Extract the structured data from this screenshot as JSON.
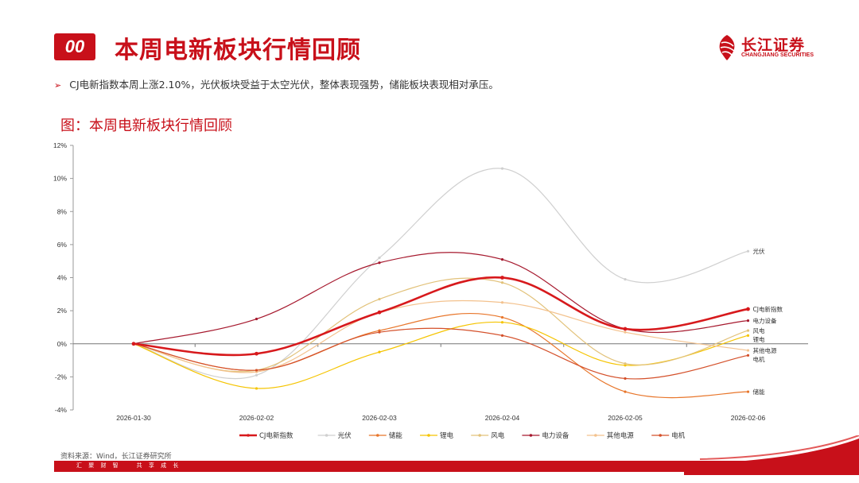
{
  "header": {
    "badge": "00",
    "title": "本周电新板块行情回顾",
    "logo_cn": "长江证券",
    "logo_en": "CHANGJIANG SECURITIES"
  },
  "bullet": {
    "text": "CJ电新指数本周上涨2.10%，光伏板块受益于太空光伏，整体表现强势，储能板块表现相对承压。"
  },
  "figure_title": "图：本周电新板块行情回顾",
  "source": "资料来源：Wind，长江证券研究所",
  "footer_slogan": "汇 聚 财 智　　共 享 成 长",
  "colors": {
    "brand_red": "#c8101a"
  },
  "chart_data": {
    "type": "line",
    "categories": [
      "2026-01-30",
      "2026-02-02",
      "2026-02-03",
      "2026-02-04",
      "2026-02-05",
      "2026-02-06"
    ],
    "ylim": [
      -4,
      12
    ],
    "yticks": [
      "12%",
      "10%",
      "8%",
      "6%",
      "4%",
      "2%",
      "0%",
      "-2%",
      "-4%"
    ],
    "ytick_values": [
      12,
      10,
      8,
      6,
      4,
      2,
      0,
      -2,
      -4
    ],
    "legend_position": "bottom",
    "series": [
      {
        "name": "CJ电新指数",
        "color": "#d7191c",
        "width": 2.6,
        "values": [
          0,
          -0.6,
          1.9,
          4.0,
          0.9,
          2.1
        ]
      },
      {
        "name": "光伏",
        "color": "#cfcfcf",
        "width": 1.2,
        "values": [
          0,
          -1.9,
          5.2,
          10.6,
          3.9,
          5.6
        ]
      },
      {
        "name": "储能",
        "color": "#e8762b",
        "width": 1.2,
        "values": [
          0,
          -1.6,
          0.8,
          1.6,
          -2.9,
          -2.9
        ]
      },
      {
        "name": "锂电",
        "color": "#f5c400",
        "width": 1.2,
        "values": [
          0,
          -2.7,
          -0.5,
          1.3,
          -1.3,
          0.5
        ]
      },
      {
        "name": "风电",
        "color": "#e2c27a",
        "width": 1.2,
        "values": [
          0,
          -1.6,
          2.7,
          3.7,
          -1.2,
          0.8
        ]
      },
      {
        "name": "电力设备",
        "color": "#a6192e",
        "width": 1.2,
        "values": [
          0,
          1.5,
          4.9,
          5.1,
          0.9,
          1.4
        ]
      },
      {
        "name": "其他电源",
        "color": "#f3c28e",
        "width": 1.2,
        "values": [
          0,
          -1.7,
          1.9,
          2.5,
          0.7,
          -0.4
        ]
      },
      {
        "name": "电机",
        "color": "#d4502a",
        "width": 1.2,
        "values": [
          0,
          -1.6,
          0.7,
          0.5,
          -2.1,
          -0.7
        ]
      }
    ],
    "end_labels": [
      "CJ电新指数",
      "光伏",
      "储能",
      "锂电",
      "风电",
      "电力设备",
      "其他电源",
      "电机"
    ]
  }
}
